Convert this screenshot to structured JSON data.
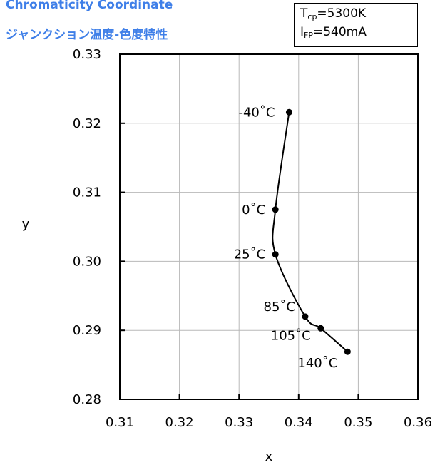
{
  "header": {
    "title_en": "Chromaticity Coordinate",
    "title_jp": "ジャンクション温度-色度特性",
    "accent_color": "#3f7fe8"
  },
  "conditions": {
    "tcp_symbol": "T",
    "tcp_sub": "cp",
    "tcp_value": "=5300K",
    "ifp_symbol": "I",
    "ifp_sub": "FP",
    "ifp_value": "=540mA"
  },
  "chart_data": {
    "type": "line",
    "xlabel": "x",
    "ylabel": "y",
    "xlim": [
      0.31,
      0.36
    ],
    "ylim": [
      0.28,
      0.33
    ],
    "xticks": [
      "0.31",
      "0.32",
      "0.33",
      "0.34",
      "0.35",
      "0.36"
    ],
    "yticks": [
      "0.28",
      "0.29",
      "0.30",
      "0.31",
      "0.32",
      "0.33"
    ],
    "grid": true,
    "legend": "none",
    "points": [
      {
        "label": "-40˚C",
        "x": 0.3384,
        "y": 0.3216
      },
      {
        "label": "0˚C",
        "x": 0.3361,
        "y": 0.3075
      },
      {
        "label": "25˚C",
        "x": 0.3361,
        "y": 0.301
      },
      {
        "label": "85˚C",
        "x": 0.3411,
        "y": 0.292
      },
      {
        "label": "105˚C",
        "x": 0.3437,
        "y": 0.2903
      },
      {
        "label": "140˚C",
        "x": 0.3482,
        "y": 0.2869
      }
    ]
  }
}
